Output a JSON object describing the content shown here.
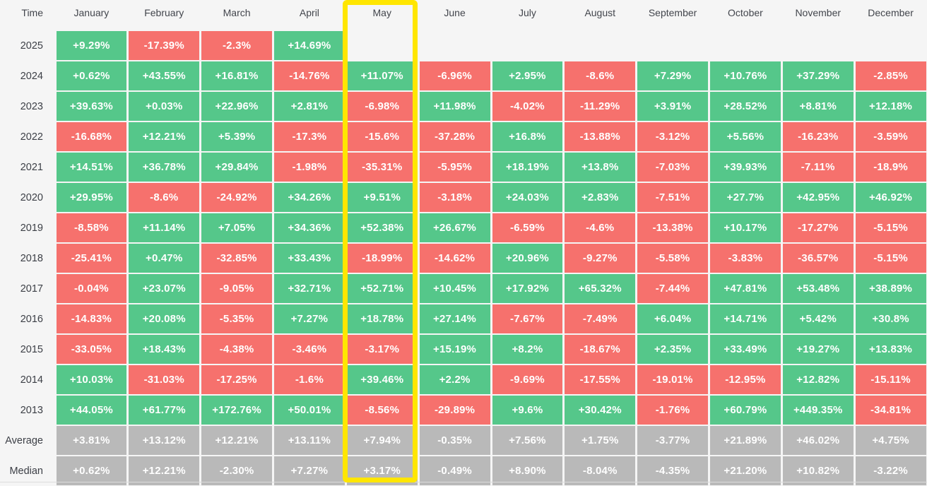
{
  "chart_data": {
    "type": "heatmap",
    "title": "Monthly returns heatmap by year",
    "corner_label": "Time",
    "columns": [
      "January",
      "February",
      "March",
      "April",
      "May",
      "June",
      "July",
      "August",
      "September",
      "October",
      "November",
      "December"
    ],
    "highlighted_column": "May",
    "rows": [
      {
        "label": "2025",
        "type": "year",
        "values": [
          "+9.29%",
          "-17.39%",
          "-2.3%",
          "+14.69%",
          null,
          null,
          null,
          null,
          null,
          null,
          null,
          null
        ]
      },
      {
        "label": "2024",
        "type": "year",
        "values": [
          "+0.62%",
          "+43.55%",
          "+16.81%",
          "-14.76%",
          "+11.07%",
          "-6.96%",
          "+2.95%",
          "-8.6%",
          "+7.29%",
          "+10.76%",
          "+37.29%",
          "-2.85%"
        ]
      },
      {
        "label": "2023",
        "type": "year",
        "values": [
          "+39.63%",
          "+0.03%",
          "+22.96%",
          "+2.81%",
          "-6.98%",
          "+11.98%",
          "-4.02%",
          "-11.29%",
          "+3.91%",
          "+28.52%",
          "+8.81%",
          "+12.18%"
        ]
      },
      {
        "label": "2022",
        "type": "year",
        "values": [
          "-16.68%",
          "+12.21%",
          "+5.39%",
          "-17.3%",
          "-15.6%",
          "-37.28%",
          "+16.8%",
          "-13.88%",
          "-3.12%",
          "+5.56%",
          "-16.23%",
          "-3.59%"
        ]
      },
      {
        "label": "2021",
        "type": "year",
        "values": [
          "+14.51%",
          "+36.78%",
          "+29.84%",
          "-1.98%",
          "-35.31%",
          "-5.95%",
          "+18.19%",
          "+13.8%",
          "-7.03%",
          "+39.93%",
          "-7.11%",
          "-18.9%"
        ]
      },
      {
        "label": "2020",
        "type": "year",
        "values": [
          "+29.95%",
          "-8.6%",
          "-24.92%",
          "+34.26%",
          "+9.51%",
          "-3.18%",
          "+24.03%",
          "+2.83%",
          "-7.51%",
          "+27.7%",
          "+42.95%",
          "+46.92%"
        ]
      },
      {
        "label": "2019",
        "type": "year",
        "values": [
          "-8.58%",
          "+11.14%",
          "+7.05%",
          "+34.36%",
          "+52.38%",
          "+26.67%",
          "-6.59%",
          "-4.6%",
          "-13.38%",
          "+10.17%",
          "-17.27%",
          "-5.15%"
        ]
      },
      {
        "label": "2018",
        "type": "year",
        "values": [
          "-25.41%",
          "+0.47%",
          "-32.85%",
          "+33.43%",
          "-18.99%",
          "-14.62%",
          "+20.96%",
          "-9.27%",
          "-5.58%",
          "-3.83%",
          "-36.57%",
          "-5.15%"
        ]
      },
      {
        "label": "2017",
        "type": "year",
        "values": [
          "-0.04%",
          "+23.07%",
          "-9.05%",
          "+32.71%",
          "+52.71%",
          "+10.45%",
          "+17.92%",
          "+65.32%",
          "-7.44%",
          "+47.81%",
          "+53.48%",
          "+38.89%"
        ]
      },
      {
        "label": "2016",
        "type": "year",
        "values": [
          "-14.83%",
          "+20.08%",
          "-5.35%",
          "+7.27%",
          "+18.78%",
          "+27.14%",
          "-7.67%",
          "-7.49%",
          "+6.04%",
          "+14.71%",
          "+5.42%",
          "+30.8%"
        ]
      },
      {
        "label": "2015",
        "type": "year",
        "values": [
          "-33.05%",
          "+18.43%",
          "-4.38%",
          "-3.46%",
          "-3.17%",
          "+15.19%",
          "+8.2%",
          "-18.67%",
          "+2.35%",
          "+33.49%",
          "+19.27%",
          "+13.83%"
        ]
      },
      {
        "label": "2014",
        "type": "year",
        "values": [
          "+10.03%",
          "-31.03%",
          "-17.25%",
          "-1.6%",
          "+39.46%",
          "+2.2%",
          "-9.69%",
          "-17.55%",
          "-19.01%",
          "-12.95%",
          "+12.82%",
          "-15.11%"
        ]
      },
      {
        "label": "2013",
        "type": "year",
        "values": [
          "+44.05%",
          "+61.77%",
          "+172.76%",
          "+50.01%",
          "-8.56%",
          "-29.89%",
          "+9.6%",
          "+30.42%",
          "-1.76%",
          "+60.79%",
          "+449.35%",
          "-34.81%"
        ]
      },
      {
        "label": "Average",
        "type": "summary",
        "values": [
          "+3.81%",
          "+13.12%",
          "+12.21%",
          "+13.11%",
          "+7.94%",
          "-0.35%",
          "+7.56%",
          "+1.75%",
          "-3.77%",
          "+21.89%",
          "+46.02%",
          "+4.75%"
        ]
      },
      {
        "label": "Median",
        "type": "summary",
        "values": [
          "+0.62%",
          "+12.21%",
          "-2.30%",
          "+7.27%",
          "+3.17%",
          "-0.49%",
          "+8.90%",
          "-8.04%",
          "-4.35%",
          "+21.20%",
          "+10.82%",
          "-3.22%"
        ]
      }
    ],
    "colors": {
      "positive": "#55c78a",
      "negative": "#f6716d",
      "summary": "#b9b9b9",
      "highlight_border": "#ffe600",
      "background": "#f5f5f5",
      "cell_text": "#ffffff",
      "label_text": "#3c3f46"
    }
  }
}
